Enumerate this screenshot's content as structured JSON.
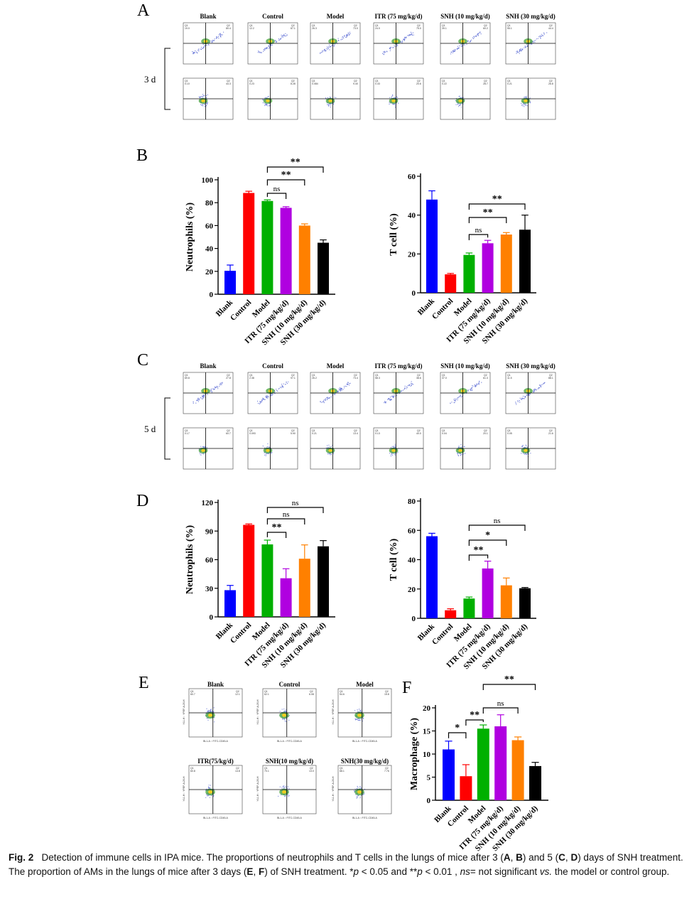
{
  "colors": {
    "Blank": "#0000ff",
    "Control": "#ff0000",
    "Model": "#00b000",
    "ITR": "#b000e0",
    "SNH10": "#ff8000",
    "SNH30": "#000000"
  },
  "flow_panels": [
    {
      "letter": "A",
      "day_label": "3 d",
      "titles": [
        "Blank",
        "Control",
        "Model",
        "ITR (75 mg/kg/d)",
        "SNH (10 mg/kg/d)",
        "SNH (30 mg/kg/d)"
      ],
      "row1": {
        "q2": [
          "80.4",
          "87.1",
          "73.0",
          "75.0",
          "60.2",
          "44.4"
        ],
        "q1": [
          "19.0",
          "12.2",
          "26.3",
          "24.0",
          "39.1",
          "55.1"
        ]
      },
      "row2": {
        "q2": [
          "44.3",
          "8.28",
          "9.40",
          "20.6",
          "28.7",
          "26.8"
        ],
        "q1": [
          "0.10",
          "0.23",
          "0.084",
          "0.33",
          "0.22",
          "0.21"
        ]
      }
    },
    {
      "letter": "C",
      "day_label": "5 d",
      "titles": [
        "Blank",
        "Control",
        "Model",
        "ITR (75 mg/kg/d)",
        "SNH (10 mg/kg/d)",
        "SNH (30 mg/kg/d)"
      ],
      "row1": {
        "q2": [
          "27.8",
          "97.1",
          "73.4",
          "38.6",
          "61.3",
          "88.1"
        ],
        "q1": [
          "69.8",
          "2.38",
          "26.2",
          "58.3",
          "37.0",
          "11.5"
        ]
      },
      "row2": {
        "q2": [
          "60.7",
          "5.90",
          "13.4",
          "40.0",
          "20.1",
          "21.6"
        ],
        "q1": [
          "0.17",
          "0.093",
          "0.21",
          "0.13",
          "0.04",
          "0.05"
        ]
      }
    },
    {
      "letter": "E",
      "titles": [
        "Blank",
        "Control",
        "Model",
        "ITR(75/kg/d)",
        "SNH(10 mg/kg/d)",
        "SNH(30 mg/kg/d)"
      ],
      "q2": [
        "12.1",
        "6.08",
        "15.8",
        "14.8",
        "13.0",
        "7.76"
      ],
      "q1": [
        "60.7",
        "62.1",
        "54.6",
        "60.8",
        "70.1",
        "68.1"
      ],
      "xlabel": "BL1-A :: FITC-CD45-A",
      "ylabel": "YL1-H :: YPEF-A-20-H"
    }
  ],
  "chart_data": [
    {
      "id": "B-neutrophils",
      "panel": "B",
      "type": "bar",
      "ylabel": "Neutrophils (%)",
      "categories": [
        "Blank",
        "Control",
        "Model",
        "ITR (75 mg/kg/d)",
        "SNH (10 mg/kg/d)",
        "SNH (30 mg/kg/d)"
      ],
      "values": [
        20.5,
        88.5,
        81.5,
        75.5,
        60.0,
        45.0
      ],
      "errors": [
        5.0,
        1.5,
        1.0,
        1.0,
        1.5,
        2.5
      ],
      "ylim": [
        0,
        100
      ],
      "yticks": [
        0,
        20,
        40,
        60,
        80,
        100
      ],
      "significance": [
        {
          "from": 2,
          "to": 3,
          "label": "ns"
        },
        {
          "from": 2,
          "to": 4,
          "label": "**"
        },
        {
          "from": 2,
          "to": 5,
          "label": "**"
        }
      ]
    },
    {
      "id": "B-tcell",
      "panel": "",
      "type": "bar",
      "ylabel": "T cell (%)",
      "categories": [
        "Blank",
        "Control",
        "Model",
        "ITR (75 mg/kg/d)",
        "SNH (10 mg/kg/d)",
        "SNH (30 mg/kg/d)"
      ],
      "values": [
        48.0,
        9.5,
        19.5,
        25.5,
        30.0,
        32.5
      ],
      "errors": [
        4.5,
        0.5,
        1.0,
        1.5,
        1.0,
        7.5
      ],
      "ylim": [
        0,
        60
      ],
      "yticks": [
        0,
        20,
        40,
        60
      ],
      "significance": [
        {
          "from": 2,
          "to": 3,
          "label": "ns"
        },
        {
          "from": 2,
          "to": 4,
          "label": "**"
        },
        {
          "from": 2,
          "to": 5,
          "label": "**"
        }
      ]
    },
    {
      "id": "D-neutrophils",
      "panel": "D",
      "type": "bar",
      "ylabel": "Neutrophils (%)",
      "categories": [
        "Blank",
        "Control",
        "Model",
        "ITR (75 mg/kg/d)",
        "SNH (10 mg/kg/d)",
        "SNH (30 mg/kg/d)"
      ],
      "values": [
        28.0,
        96.5,
        76.0,
        40.5,
        61.0,
        74.0
      ],
      "errors": [
        5.0,
        1.0,
        4.5,
        10.0,
        14.5,
        6.0
      ],
      "ylim": [
        0,
        120
      ],
      "yticks": [
        0,
        30,
        60,
        90,
        120
      ],
      "significance": [
        {
          "from": 2,
          "to": 3,
          "label": "**"
        },
        {
          "from": 2,
          "to": 4,
          "label": "ns"
        },
        {
          "from": 2,
          "to": 5,
          "label": "ns"
        }
      ]
    },
    {
      "id": "D-tcell",
      "panel": "",
      "type": "bar",
      "ylabel": "T cell (%)",
      "categories": [
        "Blank",
        "Control",
        "Model",
        "ITR (75 mg/kg/d)",
        "SNH (10 mg/kg/d)",
        "SNH (30 mg/kg/d)"
      ],
      "values": [
        56.0,
        5.5,
        13.5,
        34.0,
        22.5,
        20.5
      ],
      "errors": [
        2.0,
        1.0,
        1.0,
        5.0,
        5.0,
        0.5
      ],
      "ylim": [
        0,
        80
      ],
      "yticks": [
        0,
        20,
        40,
        60,
        80
      ],
      "significance": [
        {
          "from": 2,
          "to": 3,
          "label": "**"
        },
        {
          "from": 2,
          "to": 4,
          "label": "*"
        },
        {
          "from": 2,
          "to": 5,
          "label": "ns"
        }
      ]
    },
    {
      "id": "F-macrophage",
      "panel": "F",
      "type": "bar",
      "ylabel": "Macrophage (%)",
      "categories": [
        "Blank",
        "Control",
        "Model",
        "ITR (75 mg/kg/d)",
        "SNH (10 mg/kg/d)",
        "SNH (30 mg/kg/d)"
      ],
      "values": [
        11.0,
        5.2,
        15.5,
        16.0,
        13.0,
        7.4
      ],
      "errors": [
        1.8,
        2.5,
        0.8,
        2.5,
        0.7,
        0.8
      ],
      "ylim": [
        0,
        20
      ],
      "yticks": [
        0,
        5,
        10,
        15,
        20
      ],
      "significance": [
        {
          "from": 0,
          "to": 1,
          "label": "*"
        },
        {
          "from": 1,
          "to": 2,
          "label": "**"
        },
        {
          "from": 2,
          "to": 4,
          "label": "ns"
        },
        {
          "from": 2,
          "to": 5,
          "label": "**"
        }
      ]
    }
  ],
  "caption": {
    "label": "Fig. 2",
    "text_html": "Detection of immune cells in IPA mice. The proportions of neutrophils and T cells in the lungs of mice after 3 (<b>A</b>, <b>B</b>) and 5 (<b>C</b>, <b>D</b>) days of SNH treatment. The proportion of AMs in the lungs of mice after 3 days (<b>E</b>, <b>F</b>) of SNH treatment. *<i>p</i> &lt; 0.05 and **<i>p</i> &lt; 0.01 , <i>ns</i>= not significant <i>vs.</i> the model or control group."
  }
}
